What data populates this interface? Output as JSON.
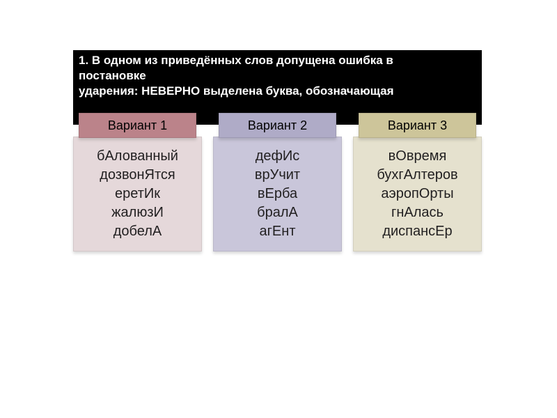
{
  "task": {
    "line1": "1. В одном из приведённых слов допущена ошибка в",
    "line2": "постановке",
    "line3": "ударения: НЕВЕРНО выделена буква, обозначающая"
  },
  "columns": [
    {
      "header_label": "Вариант 1",
      "header_bg": "#bb838a",
      "body_bg": "#e5d8da",
      "words": [
        "бАлованный",
        "дозвонЯтся",
        "еретИк",
        "жалюзИ",
        "добелА"
      ]
    },
    {
      "header_label": "Вариант 2",
      "header_bg": "#afabc7",
      "body_bg": "#c9c6da",
      "words": [
        "дефИс",
        "врУчит",
        "вЕрба",
        "бралА",
        "агЕнт"
      ]
    },
    {
      "header_label": "Вариант 3",
      "header_bg": "#cdc59a",
      "body_bg": "#e5e1ce",
      "words": [
        "вОвремя",
        "бухгАлтеров",
        "аэропОрты",
        "гнАлась",
        "диспансЕр"
      ]
    }
  ],
  "style": {
    "header_fontsize": 17,
    "column_header_fontsize": 18,
    "word_fontsize": 20,
    "background": "#ffffff",
    "task_bg": "#000000",
    "task_color": "#ffffff",
    "body_text_color": "#211f20"
  }
}
